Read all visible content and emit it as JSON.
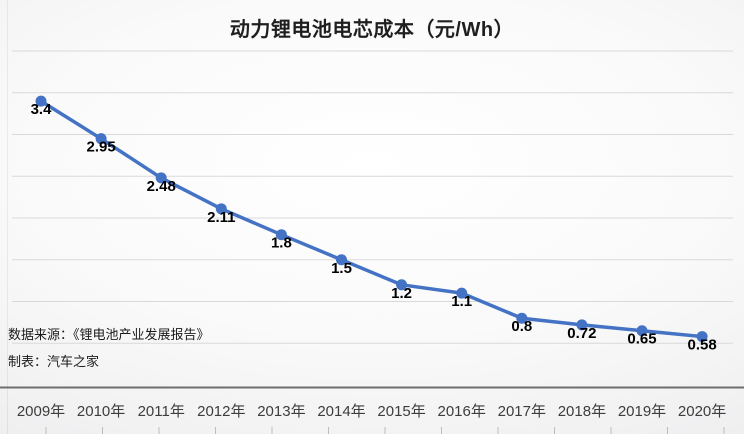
{
  "chart_data": {
    "type": "line",
    "title": "动力锂电池电芯成本（元/Wh）",
    "categories": [
      "2009年",
      "2010年",
      "2011年",
      "2012年",
      "2013年",
      "2014年",
      "2015年",
      "2016年",
      "2017年",
      "2018年",
      "2019年",
      "2020年"
    ],
    "values": [
      3.4,
      2.95,
      2.48,
      2.11,
      1.8,
      1.5,
      1.2,
      1.1,
      0.8,
      0.72,
      0.65,
      0.58
    ],
    "point_labels": [
      "3.4",
      "2.95",
      "2.48",
      "2.11",
      "1.8",
      "1.5",
      "1.2",
      "1.1",
      "0.8",
      "0.72",
      "0.65",
      "0.58"
    ],
    "xlabel": "",
    "ylabel": "",
    "ylim": [
      0,
      4
    ],
    "gridline_step": 0.5,
    "grid": true,
    "legend": "none",
    "colors": {
      "line": "#4472C4",
      "marker": "#4472C4",
      "point_label": "#000000",
      "gridline": "#d9d9d9",
      "axis_line": "#6e6e6e",
      "bottom_tick": "#bdbdbd",
      "axis_text": "#3d3d3d"
    }
  },
  "source": {
    "line1": "数据来源：《锂电池产业发展报告》",
    "line2": "制表：汽车之家"
  }
}
